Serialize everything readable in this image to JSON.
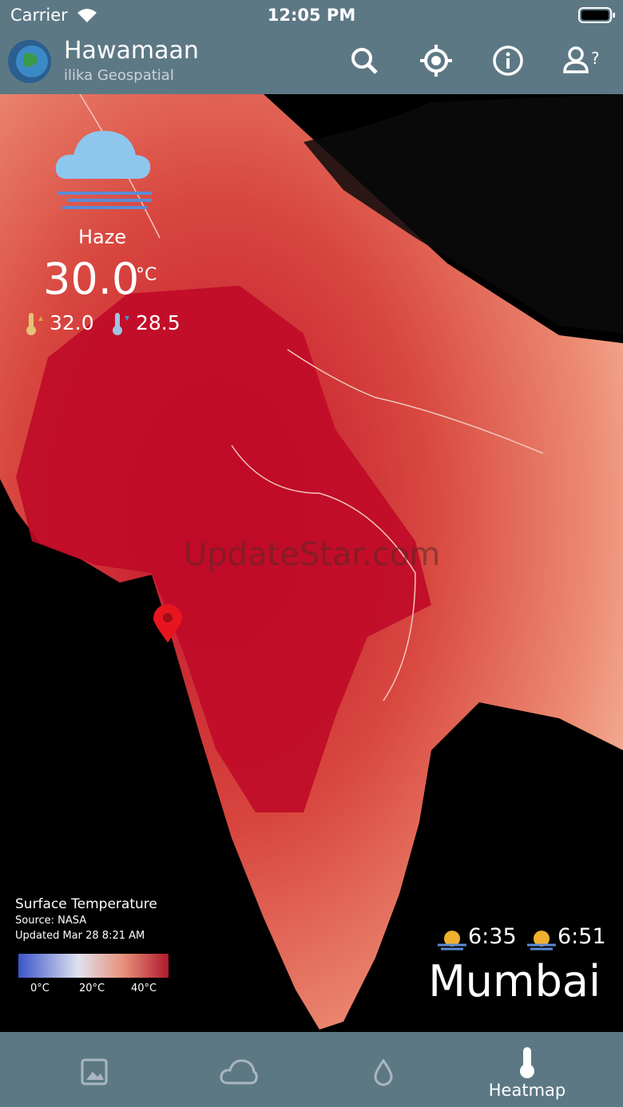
{
  "status_bar": {
    "carrier": "Carrier",
    "time": "12:05 PM"
  },
  "header": {
    "title": "Hawamaan",
    "subtitle": "ilika Geospatial"
  },
  "weather": {
    "condition": "Haze",
    "temperature": "30.0",
    "unit": "°C",
    "max": "32.0",
    "min": "28.5"
  },
  "legend": {
    "title": "Surface Temperature",
    "source": "Source: NASA",
    "updated": "Updated Mar 28 8:21 AM",
    "scale_labels": [
      "0°C",
      "20°C",
      "40°C"
    ]
  },
  "sun": {
    "sunrise": "6:35",
    "sunset": "6:51"
  },
  "location": "Mumbai",
  "watermark": "UpdateStar.com",
  "tabs": {
    "active": "Heatmap"
  }
}
